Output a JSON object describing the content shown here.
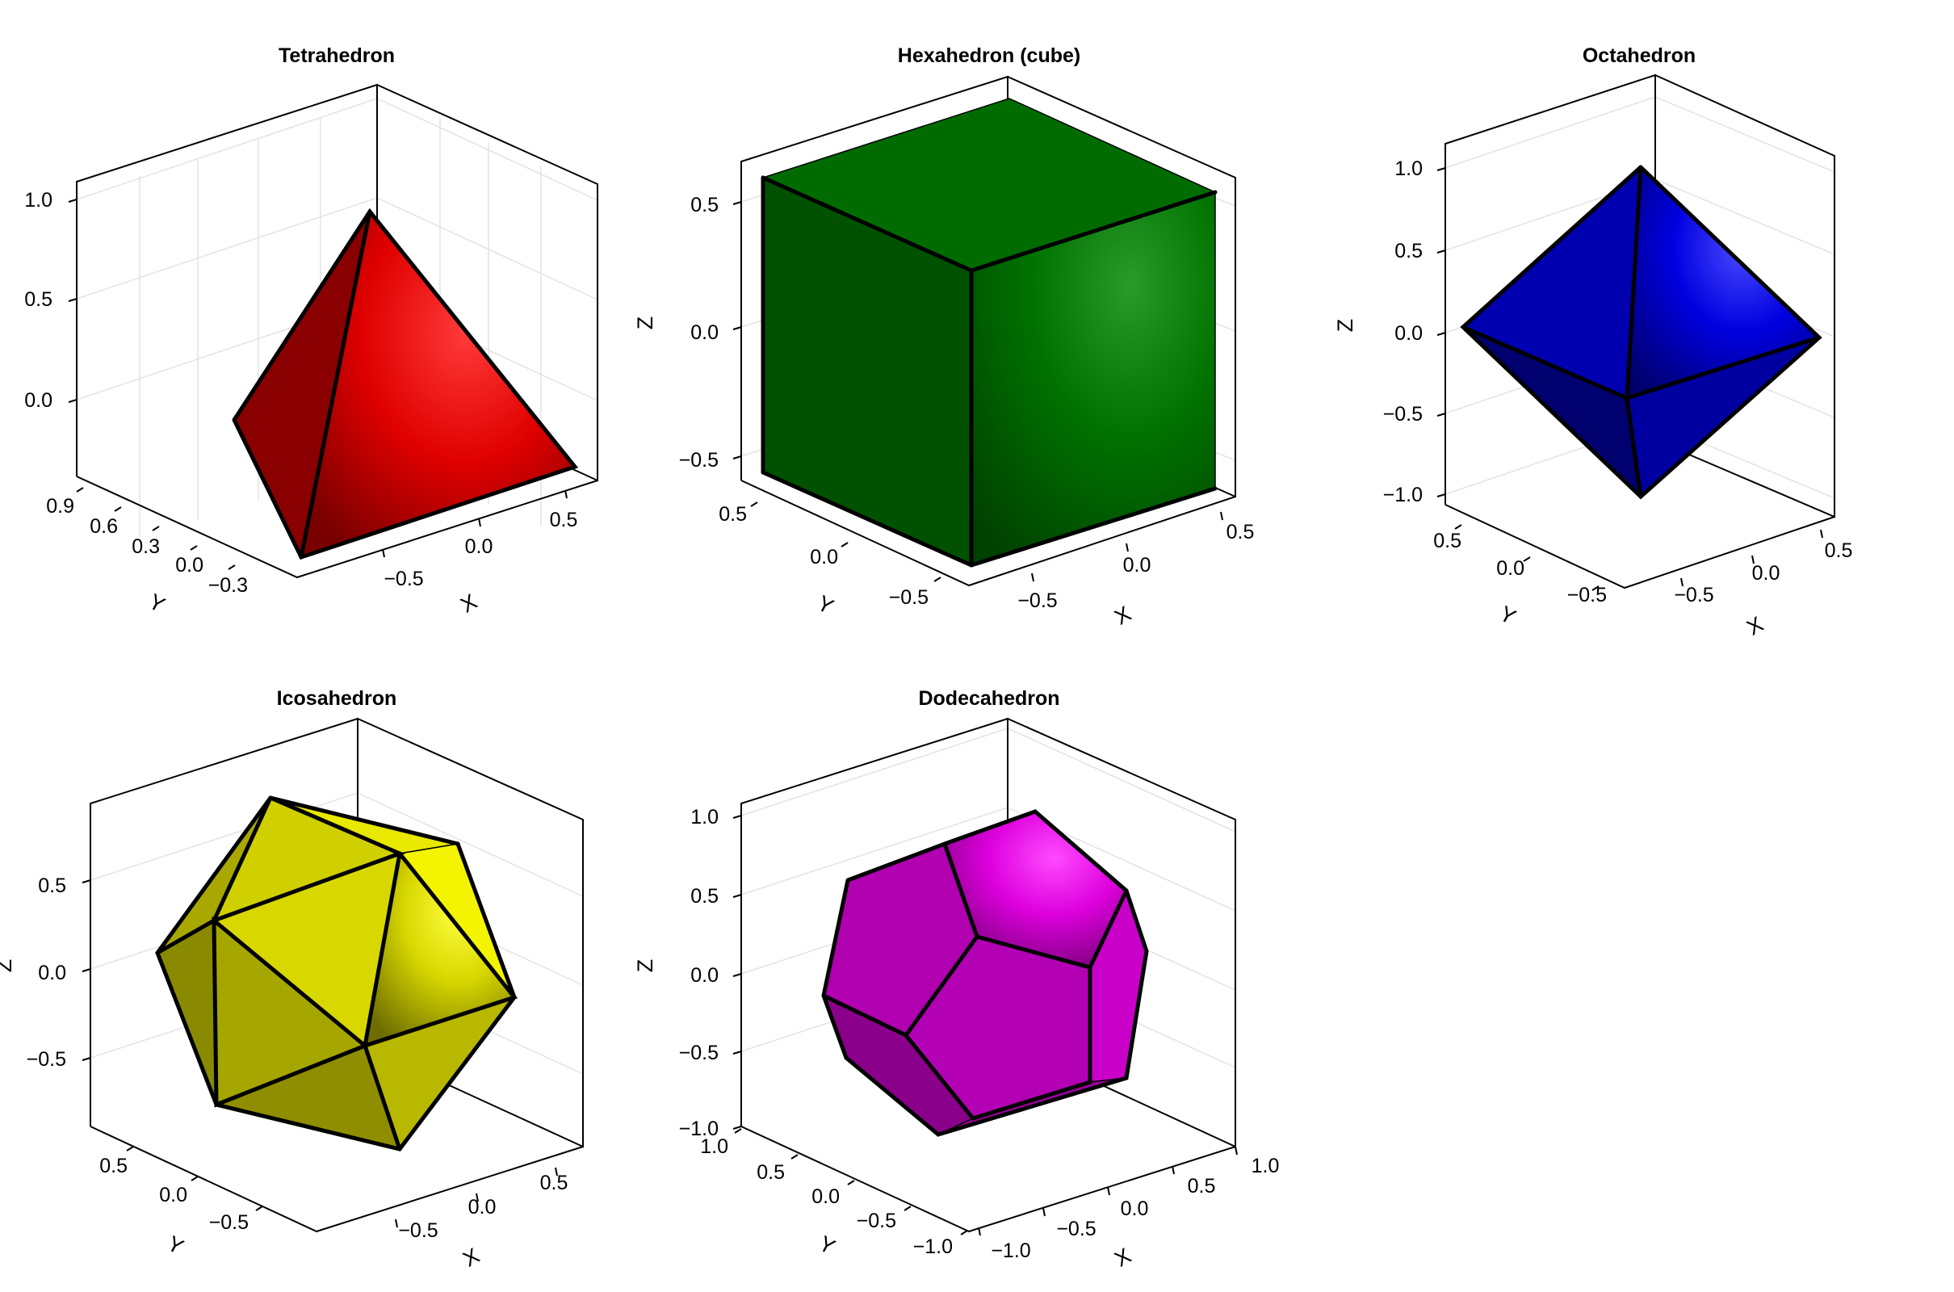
{
  "chart_data": [
    {
      "type": "surface3d",
      "title": "Tetrahedron",
      "color": "#ff0000",
      "xlabel": "X",
      "ylabel": "Y",
      "zlabel": "",
      "xticks": [
        "−0.5",
        "0.0",
        "0.5"
      ],
      "yticks": [
        "0.9",
        "0.6",
        "0.3",
        "0.0",
        "−0.3"
      ],
      "zticks": [
        "1.0",
        "0.5",
        "0.0"
      ],
      "vertices": [
        [
          0.0,
          0.0,
          1.0
        ],
        [
          -0.5,
          -0.29,
          -0.27
        ],
        [
          0.5,
          -0.29,
          -0.27
        ],
        [
          0.0,
          0.58,
          -0.27
        ]
      ]
    },
    {
      "type": "surface3d",
      "title": "Hexahedron (cube)",
      "color": "#008000",
      "xlabel": "X",
      "ylabel": "Y",
      "zlabel": "Z",
      "xticks": [
        "−0.5",
        "0.0",
        "0.5"
      ],
      "yticks": [
        "0.5",
        "0.0",
        "−0.5"
      ],
      "zticks": [
        "0.5",
        "0.0",
        "−0.5"
      ],
      "vertices": [
        [
          -0.5,
          -0.5,
          -0.5
        ],
        [
          0.5,
          -0.5,
          -0.5
        ],
        [
          0.5,
          0.5,
          -0.5
        ],
        [
          -0.5,
          0.5,
          -0.5
        ],
        [
          -0.5,
          -0.5,
          0.5
        ],
        [
          0.5,
          -0.5,
          0.5
        ],
        [
          0.5,
          0.5,
          0.5
        ],
        [
          -0.5,
          0.5,
          0.5
        ]
      ]
    },
    {
      "type": "surface3d",
      "title": "Octahedron",
      "color": "#0000ff",
      "xlabel": "X",
      "ylabel": "Y",
      "zlabel": "Z",
      "xticks": [
        "−0.5",
        "0.0",
        "0.5"
      ],
      "yticks": [
        "0.5",
        "0.0",
        "−0.5"
      ],
      "zticks": [
        "1.0",
        "0.5",
        "0.0",
        "−0.5",
        "−1.0"
      ],
      "vertices": [
        [
          1,
          0,
          0
        ],
        [
          -1,
          0,
          0
        ],
        [
          0,
          1,
          0
        ],
        [
          0,
          -1,
          0
        ],
        [
          0,
          0,
          1
        ],
        [
          0,
          0,
          -1
        ]
      ]
    },
    {
      "type": "surface3d",
      "title": "Icosahedron",
      "color": "#ffff00",
      "xlabel": "X",
      "ylabel": "Y",
      "zlabel": "Z",
      "xticks": [
        "−0.5",
        "0.0",
        "0.5"
      ],
      "yticks": [
        "0.5",
        "0.0",
        "−0.5"
      ],
      "zticks": [
        "0.5",
        "0.0",
        "−0.5"
      ],
      "vertices": "regular icosahedron, circumradius 1"
    },
    {
      "type": "surface3d",
      "title": "Dodecahedron",
      "color": "#ff00ff",
      "xlabel": "X",
      "ylabel": "Y",
      "zlabel": "Z",
      "xticks": [
        "−1.0",
        "−0.5",
        "0.0",
        "0.5",
        "1.0"
      ],
      "yticks": [
        "1.0",
        "0.5",
        "0.0",
        "−0.5",
        "−1.0"
      ],
      "zticks": [
        "1.0",
        "0.5",
        "0.0",
        "−0.5",
        "−1.0"
      ],
      "vertices": "regular dodecahedron, circumradius 1"
    }
  ]
}
